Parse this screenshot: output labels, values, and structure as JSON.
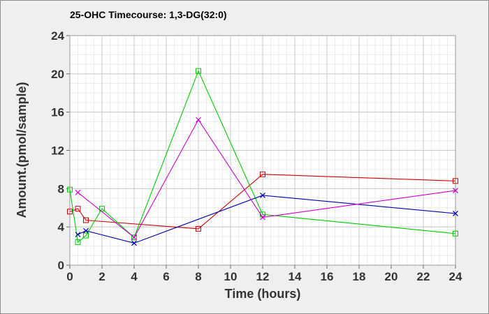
{
  "chart_data": {
    "type": "line",
    "title": "25-OHC Timecourse: 1,3-DG(32:0)",
    "xlabel": "Time (hours)",
    "ylabel": "Amount.(pmol/sample)",
    "xlim": [
      0,
      24
    ],
    "ylim": [
      0,
      24
    ],
    "xticks": [
      0,
      2,
      4,
      6,
      8,
      10,
      12,
      14,
      16,
      18,
      20,
      22,
      24
    ],
    "yticks": [
      0,
      4,
      8,
      12,
      16,
      20,
      24
    ],
    "grid": true,
    "legend": "none",
    "series": [
      {
        "color": "#cc0000",
        "marker": "square",
        "points": [
          [
            0,
            5.6
          ],
          [
            0.5,
            5.9
          ],
          [
            1,
            4.7
          ],
          [
            8,
            3.8
          ],
          [
            12,
            9.5
          ],
          [
            24,
            8.8
          ]
        ]
      },
      {
        "color": "#00cc00",
        "marker": "square",
        "points": [
          [
            0,
            7.9
          ],
          [
            0.5,
            2.4
          ],
          [
            1,
            3.1
          ],
          [
            2,
            5.9
          ],
          [
            4,
            2.9
          ],
          [
            8,
            20.3
          ],
          [
            12,
            5.3
          ],
          [
            24,
            3.3
          ]
        ]
      },
      {
        "color": "#0000aa",
        "marker": "x",
        "points": [
          [
            0.5,
            3.2
          ],
          [
            1,
            3.6
          ],
          [
            4,
            2.3
          ],
          [
            12,
            7.3
          ],
          [
            24,
            5.4
          ]
        ]
      },
      {
        "color": "#cc00cc",
        "marker": "x",
        "points": [
          [
            0.5,
            7.6
          ],
          [
            4,
            2.9
          ],
          [
            8,
            15.2
          ],
          [
            12,
            5.0
          ],
          [
            24,
            7.8
          ]
        ]
      }
    ]
  }
}
